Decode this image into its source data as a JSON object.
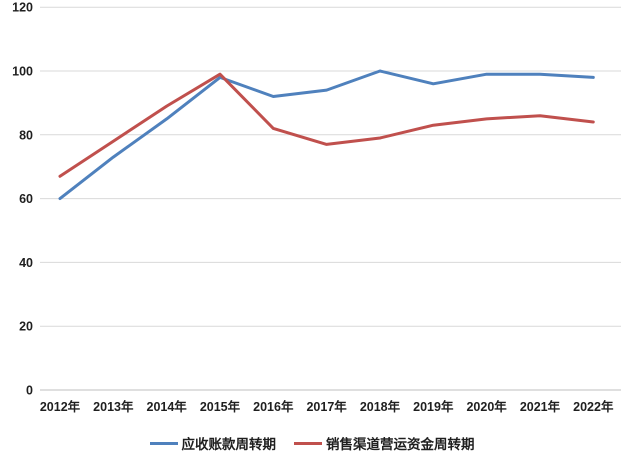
{
  "chart_data": {
    "type": "line",
    "title": "",
    "xlabel": "",
    "ylabel": "",
    "categories": [
      "2012年",
      "2013年",
      "2014年",
      "2015年",
      "2016年",
      "2017年",
      "2018年",
      "2019年",
      "2020年",
      "2021年",
      "2022年"
    ],
    "series": [
      {
        "name": "应收账款周转期",
        "color": "#4F81BD",
        "values": [
          60,
          73,
          85,
          98,
          92,
          94,
          100,
          96,
          99,
          99,
          98
        ]
      },
      {
        "name": "销售渠道营运资金周转期",
        "color": "#C0504D",
        "values": [
          67,
          78,
          89,
          99,
          82,
          77,
          79,
          83,
          85,
          86,
          84
        ]
      }
    ],
    "ylim": [
      0,
      120
    ],
    "yticks": [
      0,
      20,
      40,
      60,
      80,
      100,
      120
    ],
    "grid": true,
    "legend_position": "bottom"
  },
  "style_colors": {
    "gridline": "#d9d9d9",
    "axis_line": "#bfbfbf",
    "tick_text": "#1f1f1f"
  }
}
